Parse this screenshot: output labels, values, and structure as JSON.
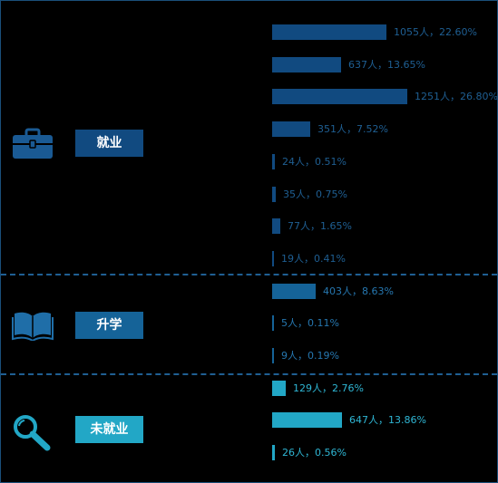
{
  "colors": {
    "employed": "#114a80",
    "further_study": "#156398",
    "unemployed": "#22a7c6",
    "divider": "#1f5f93"
  },
  "groups": [
    {
      "key": "employed",
      "label": "就业",
      "icon": "briefcase-icon"
    },
    {
      "key": "further_study",
      "label": "升学",
      "icon": "open-book-icon"
    },
    {
      "key": "unemployed",
      "label": "未就业",
      "icon": "magnifier-icon"
    }
  ],
  "chart_data": {
    "type": "bar",
    "orientation": "horizontal",
    "title": "",
    "xlabel": "",
    "ylabel": "",
    "grid": false,
    "value_unit": "人",
    "bars": [
      {
        "group": "employed",
        "value": 1055,
        "percent": "22.60%",
        "label": "1055人，22.60%"
      },
      {
        "group": "employed",
        "value": 637,
        "percent": "13.65%",
        "label": "637人，13.65%"
      },
      {
        "group": "employed",
        "value": 1251,
        "percent": "26.80%",
        "label": "1251人，26.80%"
      },
      {
        "group": "employed",
        "value": 351,
        "percent": "7.52%",
        "label": "351人，7.52%"
      },
      {
        "group": "employed",
        "value": 24,
        "percent": "0.51%",
        "label": "24人，0.51%"
      },
      {
        "group": "employed",
        "value": 35,
        "percent": "0.75%",
        "label": "35人，0.75%"
      },
      {
        "group": "employed",
        "value": 77,
        "percent": "1.65%",
        "label": "77人，1.65%"
      },
      {
        "group": "employed",
        "value": 19,
        "percent": "0.41%",
        "label": "19人，0.41%"
      },
      {
        "group": "further_study",
        "value": 403,
        "percent": "8.63%",
        "label": "403人，8.63%"
      },
      {
        "group": "further_study",
        "value": 5,
        "percent": "0.11%",
        "label": "5人，0.11%"
      },
      {
        "group": "further_study",
        "value": 9,
        "percent": "0.19%",
        "label": "9人，0.19%"
      },
      {
        "group": "unemployed",
        "value": 129,
        "percent": "2.76%",
        "label": "129人，2.76%"
      },
      {
        "group": "unemployed",
        "value": 647,
        "percent": "13.86%",
        "label": "647人，13.86%"
      },
      {
        "group": "unemployed",
        "value": 26,
        "percent": "0.56%",
        "label": "26人，0.56%"
      }
    ]
  }
}
